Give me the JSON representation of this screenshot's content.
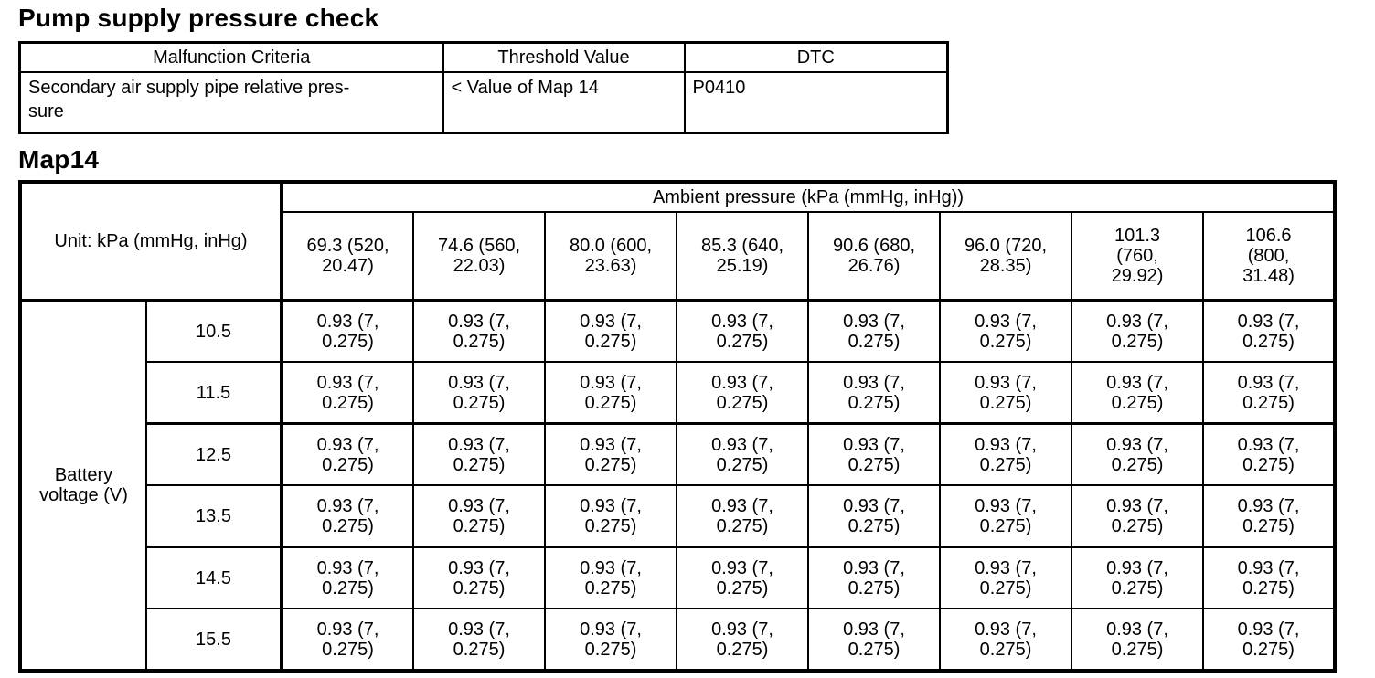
{
  "page_title": "Pump supply pressure check",
  "map_title": "Map14",
  "criteria_table": {
    "col_headers": [
      "Malfunction Criteria",
      "Threshold Value",
      "DTC"
    ],
    "rows": [
      {
        "malfunction_criteria": "Secondary air supply pipe relative pres-\nsure",
        "threshold_value": "< Value of Map 14",
        "dtc": "P0410"
      }
    ]
  },
  "map14": {
    "unit_label": "Unit: kPa (mmHg, inHg)",
    "ambient_pressure_header": "Ambient pressure (kPa (mmHg, inHg))",
    "ambient_pressure_columns": [
      "69.3 (520,\n20.47)",
      "74.6 (560,\n22.03)",
      "80.0 (600,\n23.63)",
      "85.3 (640,\n25.19)",
      "90.6 (680,\n26.76)",
      "96.0 (720,\n28.35)",
      "101.3\n(760,\n29.92)",
      "106.6\n(800,\n31.48)"
    ],
    "row_group_label": "Battery\nvoltage (V)",
    "battery_voltages": [
      "10.5",
      "11.5",
      "12.5",
      "13.5",
      "14.5",
      "15.5"
    ],
    "cells": [
      [
        "0.93 (7,\n0.275)",
        "0.93 (7,\n0.275)",
        "0.93 (7,\n0.275)",
        "0.93 (7,\n0.275)",
        "0.93 (7,\n0.275)",
        "0.93 (7,\n0.275)",
        "0.93 (7,\n0.275)",
        "0.93 (7,\n0.275)"
      ],
      [
        "0.93 (7,\n0.275)",
        "0.93 (7,\n0.275)",
        "0.93 (7,\n0.275)",
        "0.93 (7,\n0.275)",
        "0.93 (7,\n0.275)",
        "0.93 (7,\n0.275)",
        "0.93 (7,\n0.275)",
        "0.93 (7,\n0.275)"
      ],
      [
        "0.93 (7,\n0.275)",
        "0.93 (7,\n0.275)",
        "0.93 (7,\n0.275)",
        "0.93 (7,\n0.275)",
        "0.93 (7,\n0.275)",
        "0.93 (7,\n0.275)",
        "0.93 (7,\n0.275)",
        "0.93 (7,\n0.275)"
      ],
      [
        "0.93 (7,\n0.275)",
        "0.93 (7,\n0.275)",
        "0.93 (7,\n0.275)",
        "0.93 (7,\n0.275)",
        "0.93 (7,\n0.275)",
        "0.93 (7,\n0.275)",
        "0.93 (7,\n0.275)",
        "0.93 (7,\n0.275)"
      ],
      [
        "0.93 (7,\n0.275)",
        "0.93 (7,\n0.275)",
        "0.93 (7,\n0.275)",
        "0.93 (7,\n0.275)",
        "0.93 (7,\n0.275)",
        "0.93 (7,\n0.275)",
        "0.93 (7,\n0.275)",
        "0.93 (7,\n0.275)"
      ],
      [
        "0.93 (7,\n0.275)",
        "0.93 (7,\n0.275)",
        "0.93 (7,\n0.275)",
        "0.93 (7,\n0.275)",
        "0.93 (7,\n0.275)",
        "0.93 (7,\n0.275)",
        "0.93 (7,\n0.275)",
        "0.93 (7,\n0.275)"
      ]
    ]
  }
}
